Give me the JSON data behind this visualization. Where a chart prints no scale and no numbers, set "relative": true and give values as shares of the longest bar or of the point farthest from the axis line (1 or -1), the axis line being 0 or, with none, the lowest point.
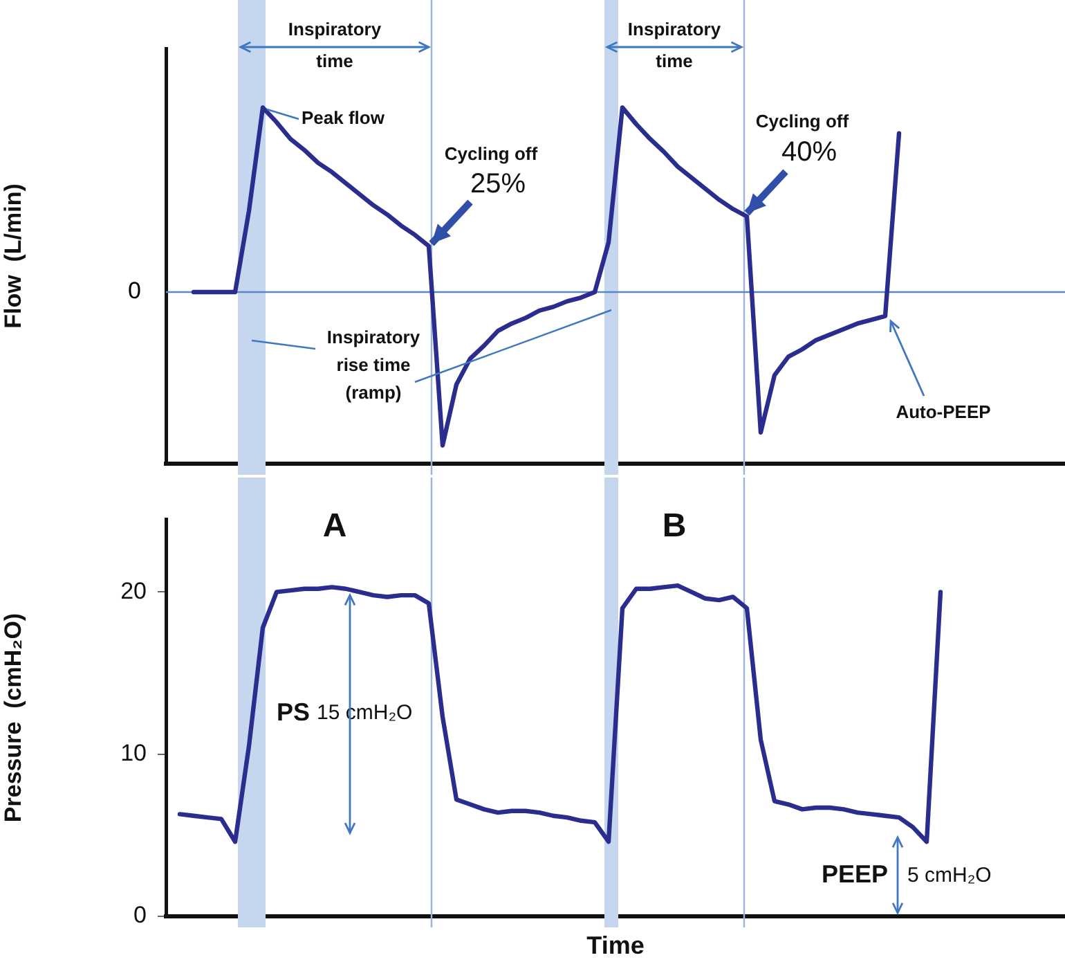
{
  "chart_data": [
    {
      "type": "line",
      "ylabel": "Flow  (L/min)",
      "relative": true,
      "tick_labels": false,
      "marker": "none",
      "line_style": "solid",
      "categories": [
        null,
        null,
        null,
        null,
        null,
        null,
        null,
        null,
        null,
        null,
        null,
        null,
        null,
        null,
        null,
        null,
        null,
        null,
        null,
        null,
        null,
        null,
        null,
        null,
        null,
        null,
        null,
        null,
        null,
        null,
        null,
        null,
        null,
        null,
        null,
        null,
        null,
        null,
        null,
        null,
        null,
        null,
        null,
        null,
        null,
        null,
        null,
        null,
        null,
        null,
        null,
        null,
        null,
        null,
        null,
        null,
        null,
        null,
        null,
        null,
        null,
        null,
        null,
        null,
        null,
        null
      ],
      "series": [
        {
          "color": "#2b2d8e",
          "values": [
            null,
            null,
            0,
            0,
            0,
            0,
            0.44,
            1,
            0.92,
            0.83,
            0.77,
            0.7,
            0.65,
            0.59,
            0.53,
            0.47,
            0.42,
            0.36,
            0.31,
            0.25,
            -0.83,
            -0.5,
            -0.36,
            -0.29,
            -0.21,
            -0.17,
            -0.14,
            -0.1,
            -0.08,
            -0.05,
            -0.03,
            0,
            0.27,
            1,
            0.91,
            0.83,
            0.76,
            0.68,
            0.62,
            0.56,
            0.5,
            0.45,
            0.41,
            -0.76,
            -0.45,
            -0.35,
            -0.31,
            -0.26,
            -0.23,
            -0.2,
            -0.17,
            -0.15,
            -0.13,
            0.86,
            null,
            null,
            null,
            null,
            null,
            null,
            null,
            null,
            null,
            null,
            null,
            null
          ]
        }
      ],
      "ref_lines": [
        {
          "axis": "y",
          "value": 0,
          "label": "0",
          "color": "#5b86c5"
        }
      ],
      "annotations": [
        "Inspiratory time",
        "Inspiratory time",
        "Inspiratory rise time (ramp)",
        "Peak flow",
        "Cycling off 25%",
        "Cycling off 40%",
        "Auto-PEEP"
      ]
    },
    {
      "type": "line",
      "ylabel": "Pressure  (cmH₂O)",
      "xlabel": "Time",
      "tick_labels": "y",
      "marker": "none",
      "line_style": "solid",
      "ylim": [
        0,
        24.5
      ],
      "yticks": [
        0,
        10,
        20
      ],
      "categories": [
        null,
        null,
        null,
        null,
        null,
        null,
        null,
        null,
        null,
        null,
        null,
        null,
        null,
        null,
        null,
        null,
        null,
        null,
        null,
        null,
        null,
        null,
        null,
        null,
        null,
        null,
        null,
        null,
        null,
        null,
        null,
        null,
        null,
        null,
        null,
        null,
        null,
        null,
        null,
        null,
        null,
        null,
        null,
        null,
        null,
        null,
        null,
        null,
        null,
        null,
        null,
        null,
        null,
        null,
        null,
        null,
        null,
        null,
        null,
        null,
        null,
        null,
        null,
        null,
        null,
        null
      ],
      "series": [
        {
          "color": "#2b2d8e",
          "values": [
            null,
            6.3,
            6.2,
            6.1,
            6,
            4.6,
            10.5,
            17.8,
            20,
            20.1,
            20.2,
            20.2,
            20.3,
            20.2,
            20,
            19.8,
            19.7,
            19.8,
            19.8,
            19.3,
            12.3,
            7.2,
            6.9,
            6.6,
            6.4,
            6.5,
            6.5,
            6.4,
            6.2,
            6.1,
            5.9,
            5.8,
            4.6,
            19,
            20.2,
            20.2,
            20.3,
            20.4,
            20,
            19.6,
            19.5,
            19.7,
            19,
            10.9,
            7.1,
            6.9,
            6.6,
            6.7,
            6.7,
            6.6,
            6.4,
            6.3,
            6.2,
            6.1,
            5.5,
            4.6,
            20,
            null,
            null,
            null,
            null,
            null,
            null,
            null,
            null,
            null
          ]
        }
      ],
      "annotations": [
        "A",
        "B",
        "PS 15 cmH₂O",
        "PEEP 5 cmH₂O"
      ]
    }
  ]
}
